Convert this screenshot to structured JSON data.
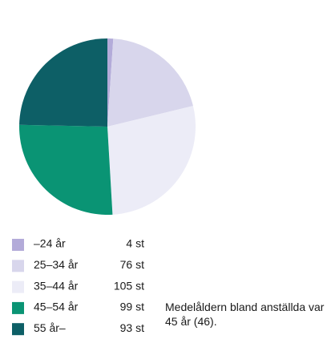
{
  "chart_data": {
    "type": "pie",
    "categories": [
      "–24 år",
      "25–34 år",
      "35–44 år",
      "45–54 år",
      "55 år–"
    ],
    "values": [
      4,
      76,
      105,
      99,
      93
    ],
    "value_labels": [
      "4 st",
      "76 st",
      "105 st",
      "99 st",
      "93 st"
    ],
    "colors": [
      "#b3abd9",
      "#d8d6ec",
      "#ececf7",
      "#0a9474",
      "#0d5f66"
    ],
    "annotation": "Medelåldern bland anställda var 45 år (46)."
  }
}
